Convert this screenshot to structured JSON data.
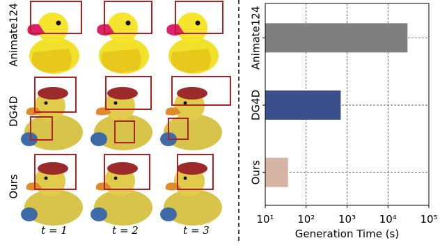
{
  "image_grid": {
    "row_labels": [
      "Animate124",
      "DG4D",
      "Ours"
    ],
    "col_labels": [
      "t = 1",
      "t = 2",
      "t = 3"
    ]
  },
  "chart_data": {
    "type": "hbar",
    "xlabel": "Generation Time (s)",
    "categories": [
      "Animate124",
      "DG4D",
      "Ours"
    ],
    "values": [
      30000,
      700,
      36
    ],
    "colors": [
      "#7f7f7f",
      "#3a4f8c",
      "#d6b3a5"
    ],
    "xscale": "log",
    "xlim": [
      10,
      100000
    ],
    "xticks": [
      {
        "value": 10,
        "label": "10¹"
      },
      {
        "value": 100,
        "label": "10²"
      },
      {
        "value": 1000,
        "label": "10³"
      },
      {
        "value": 10000,
        "label": "10⁴"
      },
      {
        "value": 100000,
        "label": "10⁵"
      }
    ],
    "grid": true
  }
}
